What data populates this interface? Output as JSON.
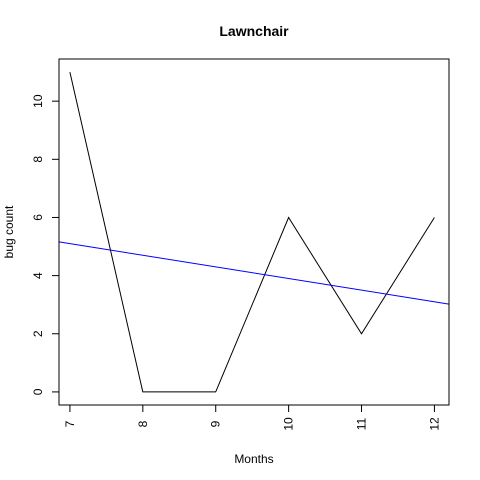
{
  "chart_data": {
    "type": "line",
    "title": "Lawnchair",
    "xlabel": "Months",
    "ylabel": "bug count",
    "xlim": [
      6.85,
      12.2
    ],
    "ylim": [
      -0.45,
      11.45
    ],
    "x_ticks": [
      7,
      8,
      9,
      10,
      11,
      12
    ],
    "y_ticks": [
      0,
      2,
      4,
      6,
      8,
      10
    ],
    "grid": false,
    "series": [
      {
        "color": "#000000",
        "x": [
          7,
          8,
          9,
          10,
          11,
          12
        ],
        "y": [
          11,
          0,
          0,
          6,
          2,
          6
        ]
      }
    ],
    "trend_line": {
      "color": "#0000ff",
      "slope": -0.4,
      "intercept": 7.9
    }
  }
}
